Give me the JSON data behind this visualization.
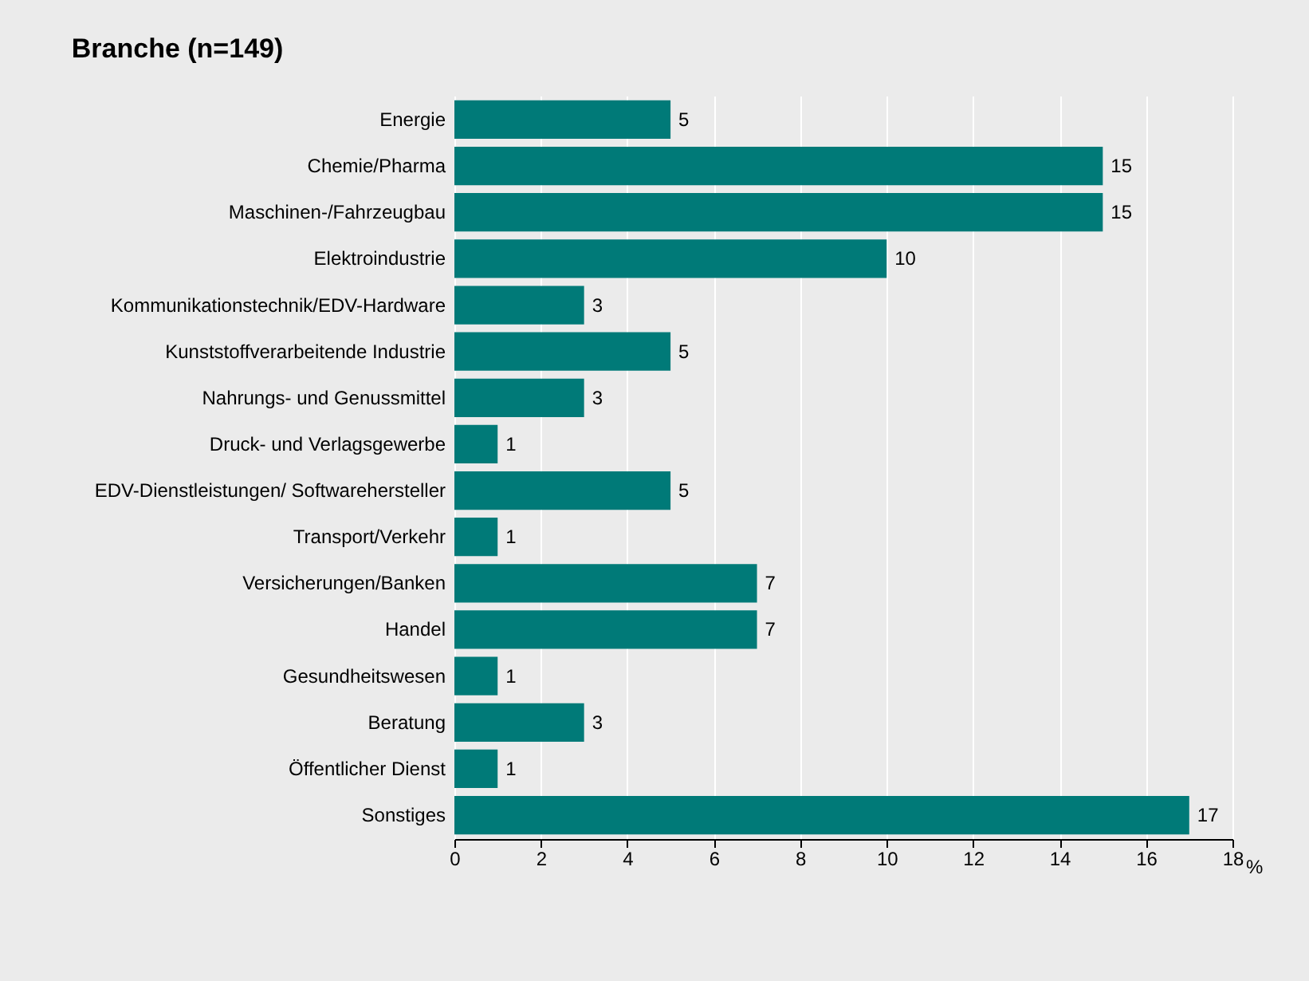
{
  "chart_data": {
    "type": "bar",
    "orientation": "horizontal",
    "title": "Branche (n=149)",
    "xlabel": "%",
    "categories": [
      "Energie",
      "Chemie/Pharma",
      "Maschinen-/Fahrzeugbau",
      "Elektroindustrie",
      "Kommunikationstechnik/EDV-Hardware",
      "Kunststoffverarbeitende Industrie",
      "Nahrungs- und Genussmittel",
      "Druck- und Verlagsgewerbe",
      "EDV-Dienstleistungen/ Softwarehersteller",
      "Transport/Verkehr",
      "Versicherungen/Banken",
      "Handel",
      "Gesundheitswesen",
      "Beratung",
      "Öffentlicher Dienst",
      "Sonstiges"
    ],
    "values": [
      5,
      15,
      15,
      10,
      3,
      5,
      3,
      1,
      5,
      1,
      7,
      7,
      1,
      3,
      1,
      17
    ],
    "color": "#007a78",
    "xlim": [
      0,
      18
    ],
    "xticks": [
      0,
      2,
      4,
      6,
      8,
      10,
      12,
      14,
      16,
      18
    ],
    "grid": "x",
    "data_labels": true
  }
}
